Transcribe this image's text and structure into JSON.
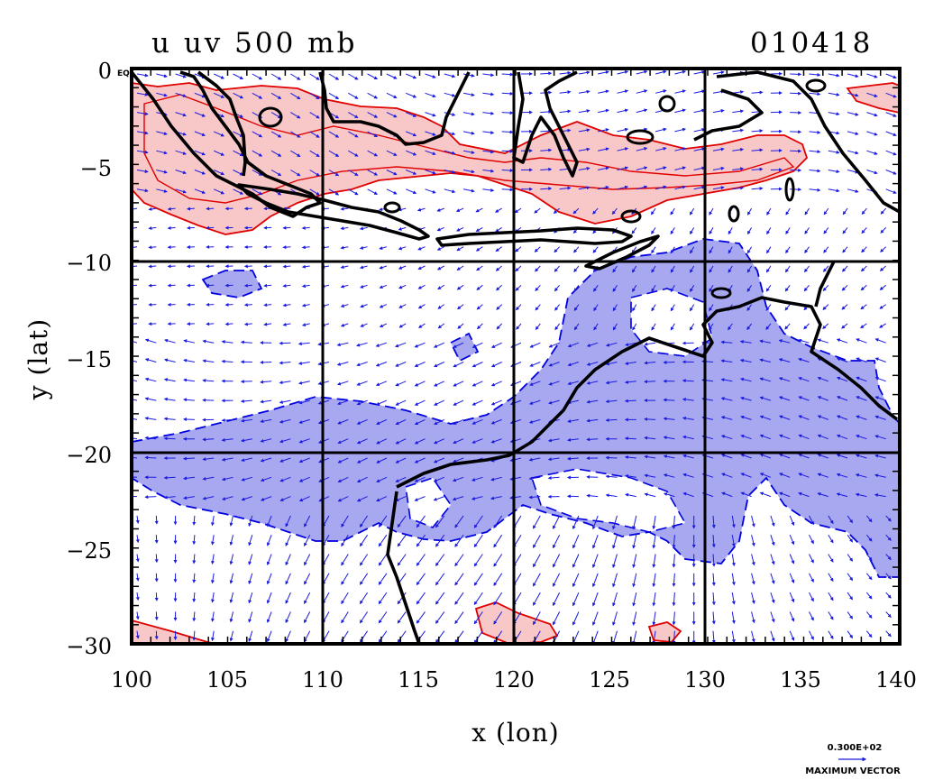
{
  "plot": {
    "title_left": "u uv 500 mb",
    "title_right": "010418",
    "corner_label": "EQ",
    "x_axis_title": "x (lon)",
    "y_axis_title": "y (lat)",
    "x_ticks": [
      "100",
      "105",
      "110",
      "115",
      "120",
      "125",
      "130",
      "135",
      "140"
    ],
    "y_ticks": [
      "0",
      "−5",
      "−10",
      "−15",
      "−20",
      "−25",
      "−30"
    ]
  },
  "legend": {
    "vector_scale": "0.300E+02",
    "vector_label": "MAXIMUM VECTOR"
  },
  "colors": {
    "positive_fill": "#f8c8c8",
    "positive_line": "#e00000",
    "negative_fill": "#a8a8f0",
    "negative_line": "#0000e0",
    "coast": "#000000",
    "vector": "#1a1ae0"
  },
  "chart_data": {
    "type": "contour-map",
    "title": "u uv 500 mb",
    "date": "010418",
    "xlabel": "x (lon)",
    "ylabel": "y (lat)",
    "xlim": [
      100,
      140
    ],
    "ylim": [
      -30,
      0
    ],
    "x_ticks": [
      100,
      105,
      110,
      115,
      120,
      125,
      130,
      135,
      140
    ],
    "y_ticks": [
      0,
      -5,
      -10,
      -15,
      -20,
      -25,
      -30
    ],
    "gridlines_lon": [
      110,
      120,
      130
    ],
    "gridlines_lat": [
      -10,
      -20
    ],
    "shaded_regions": [
      {
        "sign": "positive (westerly u)",
        "color": "pink",
        "approx_extent": "lat 0 to -9, lon 100 to 137"
      },
      {
        "sign": "negative (easterly u)",
        "color": "blue",
        "approx_extent": "lat -10 to -28, lon 100 to 140"
      }
    ],
    "vector_field": "wind vectors on a regular grid",
    "max_vector": "0.300E+02"
  }
}
